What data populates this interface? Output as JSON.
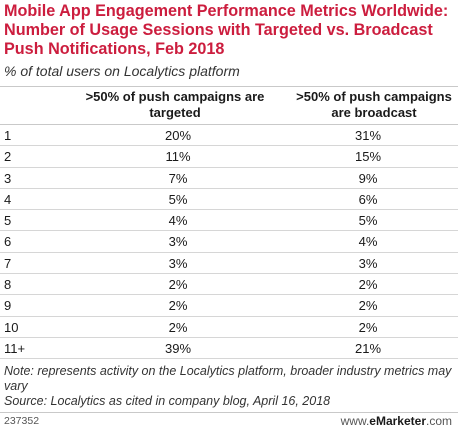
{
  "header": {
    "title": "Mobile App Engagement Performance Metrics Worldwide: Number of Usage Sessions with Targeted vs. Broadcast Push Notifications, Feb 2018",
    "subtitle": "% of total users on Localytics platform"
  },
  "chart_data": {
    "type": "table",
    "title": "Mobile App Engagement Performance Metrics Worldwide: Number of Usage Sessions with Targeted vs. Broadcast Push Notifications, Feb 2018",
    "subtitle": "% of total users on Localytics platform",
    "columns": [
      ">50% of push campaigns are targeted",
      ">50% of push campaigns are broadcast"
    ],
    "rows": [
      {
        "label": "1",
        "targeted": "20%",
        "broadcast": "31%"
      },
      {
        "label": "2",
        "targeted": "11%",
        "broadcast": "15%"
      },
      {
        "label": "3",
        "targeted": "7%",
        "broadcast": "9%"
      },
      {
        "label": "4",
        "targeted": "5%",
        "broadcast": "6%"
      },
      {
        "label": "5",
        "targeted": "4%",
        "broadcast": "5%"
      },
      {
        "label": "6",
        "targeted": "3%",
        "broadcast": "4%"
      },
      {
        "label": "7",
        "targeted": "3%",
        "broadcast": "3%"
      },
      {
        "label": "8",
        "targeted": "2%",
        "broadcast": "2%"
      },
      {
        "label": "9",
        "targeted": "2%",
        "broadcast": "2%"
      },
      {
        "label": "10",
        "targeted": "2%",
        "broadcast": "2%"
      },
      {
        "label": "11+",
        "targeted": "39%",
        "broadcast": "21%"
      }
    ]
  },
  "footnotes": {
    "note": "Note: represents activity on the Localytics platform, broader industry metrics may vary",
    "source": "Source: Localytics as cited in company blog, April 16, 2018"
  },
  "footer": {
    "chart_id": "237352",
    "brand_prefix": "www.",
    "brand_name": "eMarketer",
    "brand_suffix": ".com"
  },
  "colors": {
    "title": "#cc1d3e",
    "rule": "#c9c9c9"
  }
}
